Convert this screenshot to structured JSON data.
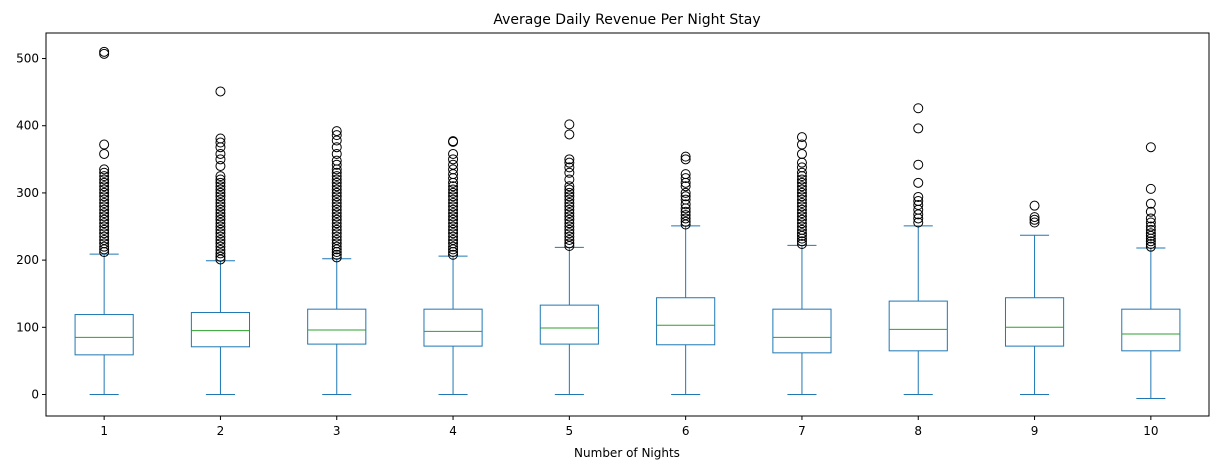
{
  "chart_data": {
    "type": "box",
    "title": "Average Daily Revenue Per Night Stay",
    "xlabel": "Number of Nights",
    "ylabel": "",
    "ylim": [
      -32,
      538
    ],
    "yticks": [
      0,
      100,
      200,
      300,
      400,
      500
    ],
    "grid": false,
    "colors": {
      "box": "#1f77b4",
      "median": "#2ca02c",
      "outlier": "#000000"
    },
    "categories": [
      "1",
      "2",
      "3",
      "4",
      "5",
      "6",
      "7",
      "8",
      "9",
      "10"
    ],
    "boxes": [
      {
        "whisker_low": 0,
        "q1": 59,
        "median": 85,
        "q3": 119,
        "whisker_high": 209,
        "outliers": [
          212,
          216,
          220,
          225,
          230,
          235,
          240,
          245,
          250,
          255,
          260,
          265,
          270,
          275,
          280,
          285,
          290,
          295,
          300,
          305,
          310,
          315,
          320,
          325,
          330,
          335,
          358,
          372,
          507,
          510
        ]
      },
      {
        "whisker_low": 0,
        "q1": 71,
        "median": 95,
        "q3": 122,
        "whisker_high": 199,
        "outliers": [
          201,
          205,
          210,
          215,
          220,
          225,
          230,
          235,
          240,
          245,
          250,
          255,
          260,
          265,
          270,
          275,
          280,
          285,
          290,
          295,
          300,
          305,
          310,
          315,
          320,
          325,
          340,
          350,
          358,
          368,
          375,
          381,
          451
        ]
      },
      {
        "whisker_low": 0,
        "q1": 75,
        "median": 96,
        "q3": 127,
        "whisker_high": 202,
        "outliers": [
          204,
          208,
          212,
          216,
          220,
          225,
          230,
          235,
          240,
          245,
          250,
          255,
          260,
          265,
          270,
          275,
          280,
          285,
          290,
          295,
          300,
          305,
          310,
          315,
          320,
          325,
          330,
          335,
          342,
          348,
          358,
          368,
          378,
          386,
          392
        ]
      },
      {
        "whisker_low": 0,
        "q1": 72,
        "median": 94,
        "q3": 127,
        "whisker_high": 206,
        "outliers": [
          208,
          212,
          216,
          220,
          225,
          230,
          235,
          240,
          245,
          250,
          255,
          260,
          265,
          270,
          275,
          280,
          285,
          290,
          295,
          300,
          305,
          310,
          315,
          322,
          328,
          335,
          342,
          350,
          358,
          376,
          377
        ]
      },
      {
        "whisker_low": 0,
        "q1": 75,
        "median": 99,
        "q3": 133,
        "whisker_high": 219,
        "outliers": [
          221,
          225,
          230,
          235,
          240,
          245,
          250,
          255,
          260,
          265,
          270,
          275,
          280,
          285,
          290,
          295,
          300,
          305,
          310,
          320,
          330,
          338,
          345,
          350,
          387,
          402
        ]
      },
      {
        "whisker_low": 0,
        "q1": 74,
        "median": 103,
        "q3": 144,
        "whisker_high": 251,
        "outliers": [
          253,
          257,
          262,
          267,
          272,
          277,
          283,
          290,
          295,
          300,
          310,
          315,
          322,
          328,
          350,
          354
        ]
      },
      {
        "whisker_low": 0,
        "q1": 62,
        "median": 85,
        "q3": 127,
        "whisker_high": 222,
        "outliers": [
          224,
          228,
          232,
          236,
          240,
          245,
          250,
          255,
          260,
          265,
          270,
          275,
          280,
          285,
          290,
          295,
          300,
          305,
          310,
          315,
          320,
          325,
          330,
          338,
          345,
          358,
          372,
          383
        ]
      },
      {
        "whisker_low": 0,
        "q1": 65,
        "median": 97,
        "q3": 139,
        "whisker_high": 251,
        "outliers": [
          256,
          262,
          268,
          275,
          282,
          288,
          294,
          315,
          342,
          396,
          426
        ]
      },
      {
        "whisker_low": 0,
        "q1": 72,
        "median": 100,
        "q3": 144,
        "whisker_high": 237,
        "outliers": [
          256,
          260,
          264,
          281
        ]
      },
      {
        "whisker_low": -6,
        "q1": 65,
        "median": 90,
        "q3": 127,
        "whisker_high": 218,
        "outliers": [
          220,
          224,
          228,
          232,
          236,
          240,
          245,
          250,
          256,
          262,
          272,
          284,
          306,
          368
        ]
      }
    ]
  }
}
